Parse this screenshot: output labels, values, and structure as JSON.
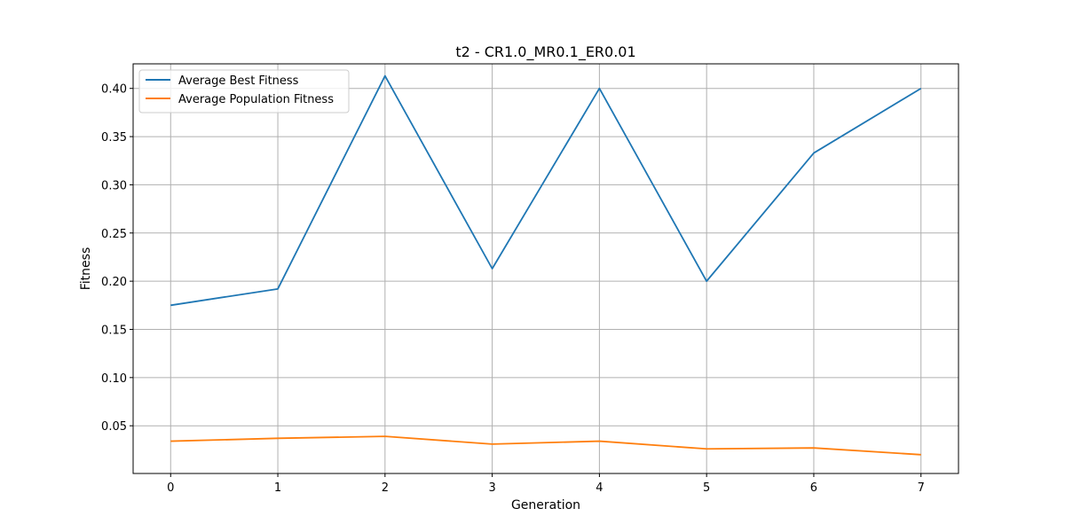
{
  "chart_data": {
    "type": "line",
    "title": "t2 - CR1.0_MR0.1_ER0.01",
    "xlabel": "Generation",
    "ylabel": "Fitness",
    "x": [
      0,
      1,
      2,
      3,
      4,
      5,
      6,
      7
    ],
    "x_ticks": [
      "0",
      "1",
      "2",
      "3",
      "4",
      "5",
      "6",
      "7"
    ],
    "y_ticks": [
      "0.05",
      "0.10",
      "0.15",
      "0.20",
      "0.25",
      "0.30",
      "0.35",
      "0.40"
    ],
    "xlim": [
      -0.35,
      7.35
    ],
    "ylim": [
      0.0005,
      0.4255
    ],
    "grid": true,
    "legend_position": "top-left",
    "series": [
      {
        "name": "Average Best Fitness",
        "color": "#1f77b4",
        "values": [
          0.175,
          0.192,
          0.413,
          0.213,
          0.4,
          0.2,
          0.333,
          0.4
        ]
      },
      {
        "name": "Average Population Fitness",
        "color": "#ff7f0e",
        "values": [
          0.034,
          0.037,
          0.039,
          0.031,
          0.034,
          0.026,
          0.027,
          0.02
        ]
      }
    ]
  }
}
